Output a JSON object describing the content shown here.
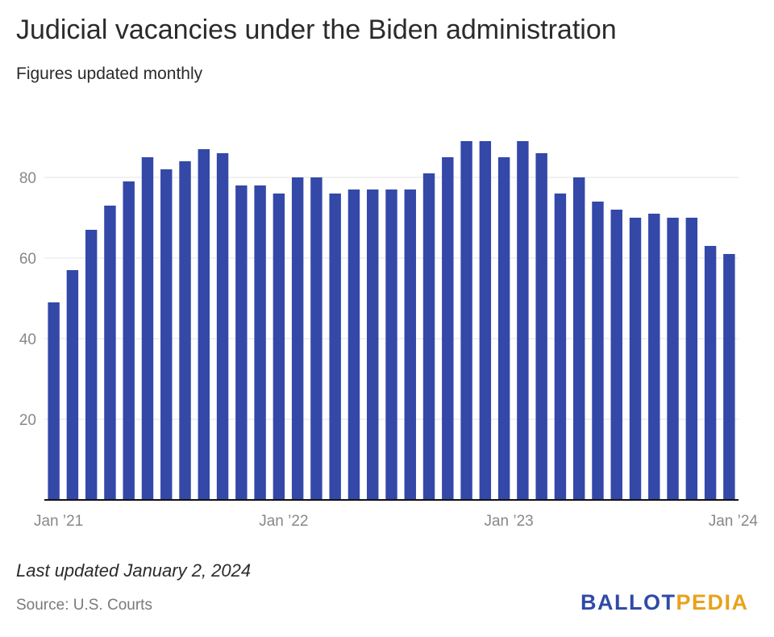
{
  "header": {
    "title": "Judicial vacancies under the Biden administration",
    "subtitle": "Figures updated monthly"
  },
  "footer": {
    "note": "Last updated January 2, 2024",
    "source": "Source: U.S. Courts",
    "logo_part_1": "BALLOT",
    "logo_part_2": "PEDIA",
    "logo_colors": {
      "primary": "#2f4aa8",
      "accent": "#e8a21f"
    }
  },
  "chart_data": {
    "type": "bar",
    "title": "Judicial vacancies under the Biden administration",
    "subtitle": "Figures updated monthly",
    "xlabel": "",
    "ylabel": "",
    "categories": [
      "Jan 2021",
      "Feb 2021",
      "Mar 2021",
      "Apr 2021",
      "May 2021",
      "Jun 2021",
      "Jul 2021",
      "Aug 2021",
      "Sep 2021",
      "Oct 2021",
      "Nov 2021",
      "Dec 2021",
      "Jan 2022",
      "Feb 2022",
      "Mar 2022",
      "Apr 2022",
      "May 2022",
      "Jun 2022",
      "Jul 2022",
      "Aug 2022",
      "Sep 2022",
      "Oct 2022",
      "Nov 2022",
      "Dec 2022",
      "Jan 2023",
      "Feb 2023",
      "Mar 2023",
      "Apr 2023",
      "May 2023",
      "Jun 2023",
      "Jul 2023",
      "Aug 2023",
      "Sep 2023",
      "Oct 2023",
      "Nov 2023",
      "Dec 2023",
      "Jan 2024"
    ],
    "values": [
      49,
      57,
      67,
      73,
      79,
      85,
      82,
      84,
      87,
      86,
      78,
      78,
      76,
      80,
      80,
      76,
      77,
      77,
      77,
      77,
      81,
      85,
      89,
      89,
      85,
      89,
      86,
      76,
      80,
      74,
      72,
      70,
      71,
      70,
      70,
      63,
      61
    ],
    "x_tick_labels": [
      {
        "index": 0,
        "label": "Jan ’21"
      },
      {
        "index": 12,
        "label": "Jan ’22"
      },
      {
        "index": 24,
        "label": "Jan ’23"
      },
      {
        "index": 36,
        "label": "Jan ’24"
      }
    ],
    "y_ticks": [
      20,
      40,
      60,
      80
    ],
    "ylim": [
      0,
      100
    ],
    "grid": true,
    "bar_color": "#3448a8",
    "grid_color": "#e3e3e3",
    "axis_color": "#111111",
    "tick_label_color": "#888888"
  }
}
